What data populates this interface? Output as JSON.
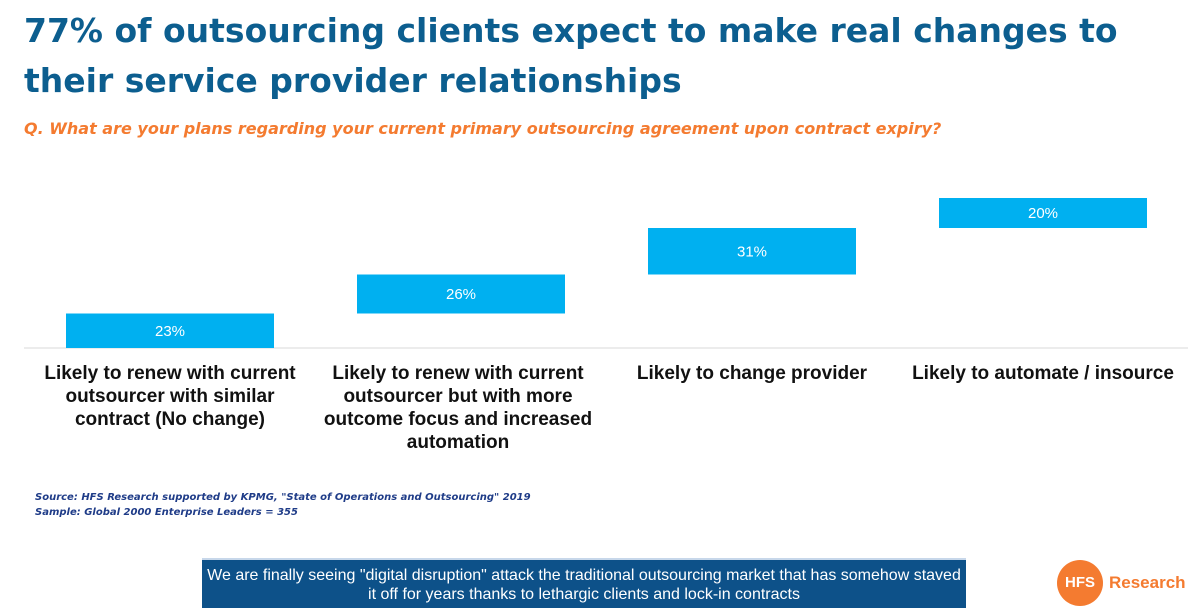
{
  "header": {
    "title": "77% of outsourcing clients expect to make real changes to their service provider relationships",
    "question": "Q. What are your plans regarding your current primary outsourcing agreement upon contract expiry?"
  },
  "chart_data": {
    "type": "bar",
    "subtype": "waterfall",
    "categories": [
      "Likely to renew with current outsourcer with similar contract (No change)",
      "Likely to renew with current outsourcer but with more outcome focus and increased automation",
      "Likely to change provider",
      "Likely to automate / insource"
    ],
    "values": [
      23,
      26,
      31,
      20
    ],
    "data_labels": [
      "23%",
      "26%",
      "31%",
      "20%"
    ],
    "unit": "%",
    "ylim": [
      0,
      100
    ],
    "grid": false,
    "legend": "none",
    "bar_color": "#00b0f0"
  },
  "footer": {
    "source": "Source: HFS Research supported by KPMG, \"State of Operations and Outsourcing\" 2019",
    "sample": "Sample: Global 2000 Enterprise Leaders = 355",
    "callout": "We are finally seeing \"digital disruption\" attack the traditional outsourcing market that has somehow staved it off for years thanks to lethargic clients and lock-in contracts"
  },
  "logo": {
    "mark": "HFS",
    "word": "Research",
    "color": "#f47b30"
  }
}
